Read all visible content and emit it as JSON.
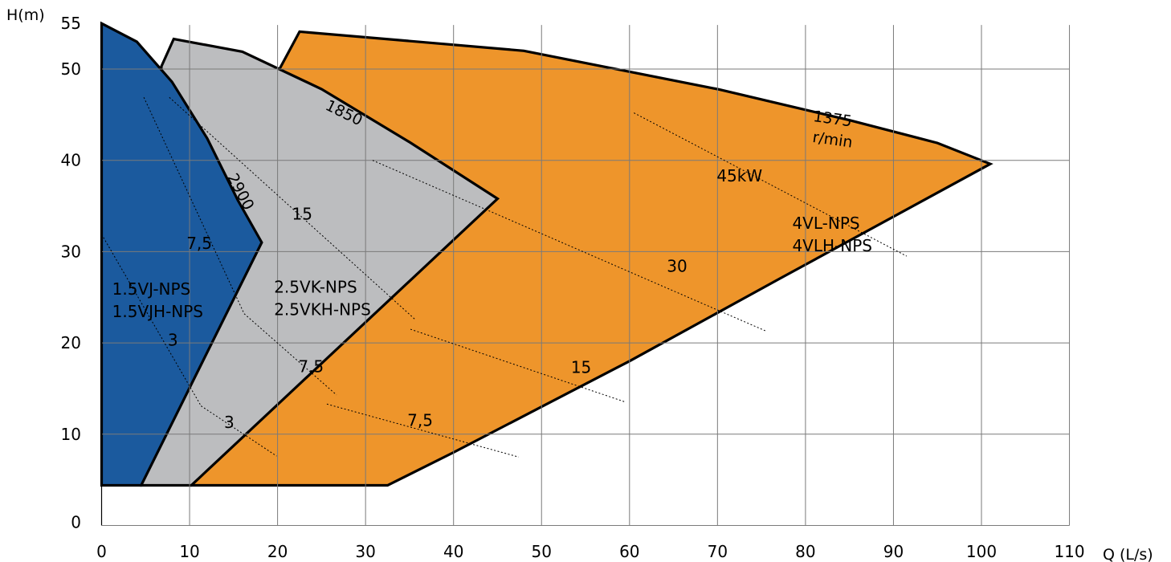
{
  "chart_data": {
    "type": "area",
    "xlabel": "Q (L/s)",
    "ylabel": "H(m)",
    "xlim": [
      0,
      110
    ],
    "ylim": [
      0,
      55
    ],
    "xticks": [
      0,
      10,
      20,
      30,
      40,
      50,
      60,
      70,
      80,
      90,
      100,
      110
    ],
    "yticks": [
      0,
      10,
      20,
      30,
      40,
      50,
      55
    ],
    "grid": true,
    "series": [
      {
        "name": "4VL-NPS / 4VLH-NPS",
        "color": "#ee952b",
        "outline": [
          [
            10.2,
            4.4
          ],
          [
            22.5,
            48.6
          ],
          [
            20.0,
            49.6
          ],
          [
            22.5,
            54.1
          ],
          [
            48,
            52.0
          ],
          [
            70,
            47.8
          ],
          [
            85,
            44.4
          ],
          [
            95,
            41.9
          ],
          [
            101,
            39.6
          ],
          [
            77,
            27.0
          ],
          [
            60,
            18.0
          ],
          [
            40,
            8.0
          ],
          [
            32.5,
            4.4
          ]
        ],
        "speed_label": [
          "1375",
          "r/min"
        ]
      },
      {
        "name": "2.5VK-NPS / 2.5VKH-NPS",
        "color": "#bcbdbf",
        "outline": [
          [
            4.5,
            4.4
          ],
          [
            6.8,
            50.3
          ],
          [
            8.2,
            53.3
          ],
          [
            16,
            51.9
          ],
          [
            25,
            47.8
          ],
          [
            35,
            42.0
          ],
          [
            45,
            35.8
          ],
          [
            10.2,
            4.4
          ]
        ],
        "speed_label": [
          "1850"
        ]
      },
      {
        "name": "1.5VJ-NPS / 1.5VJH-NPS",
        "color": "#1b5a9e",
        "outline": [
          [
            0,
            4.4
          ],
          [
            0,
            55.0
          ],
          [
            4,
            53.0
          ],
          [
            8,
            48.6
          ],
          [
            12,
            42.4
          ],
          [
            15.5,
            35.6
          ],
          [
            18.2,
            31.0
          ],
          [
            4.5,
            4.4
          ]
        ],
        "speed_label": [
          "2900"
        ]
      }
    ],
    "region_labels": [
      {
        "lines": [
          "4VL-NPS",
          "4VLH-NPS"
        ],
        "anchor": [
          78.5,
          32.5
        ]
      },
      {
        "lines": [
          "2.5VK-NPS",
          "2.5VKH-NPS"
        ],
        "anchor": [
          19.6,
          25.5
        ]
      },
      {
        "lines": [
          "1.5VJ-NPS",
          "1.5VJH-NPS"
        ],
        "anchor": [
          1.2,
          25.3
        ]
      }
    ],
    "power_lines": [
      {
        "label": "45kW",
        "points": [
          [
            60.5,
            45.2
          ],
          [
            91.5,
            29.5
          ]
        ],
        "label_at": [
          72.5,
          37.7
        ]
      },
      {
        "label": "30",
        "points": [
          [
            30.8,
            40.0
          ],
          [
            75.5,
            21.3
          ]
        ],
        "label_at": [
          65.4,
          27.8
        ]
      },
      {
        "label": "15",
        "points": [
          [
            35.1,
            21.5
          ],
          [
            59.6,
            13.5
          ]
        ],
        "label_at": [
          54.5,
          16.7
        ]
      },
      {
        "label": "7,5",
        "points": [
          [
            25.6,
            13.3
          ],
          [
            47.4,
            7.5
          ]
        ],
        "label_at": [
          36.2,
          10.9
        ]
      },
      {
        "label": "15",
        "points": [
          [
            7.7,
            46.9
          ],
          [
            35.6,
            22.6
          ]
        ],
        "label_at": [
          22.8,
          33.5
        ]
      },
      {
        "label": "7,5",
        "points": [
          [
            16.2,
            23.2
          ],
          [
            26.7,
            14.3
          ]
        ],
        "label_at": [
          23.8,
          16.8
        ]
      },
      {
        "label": "3",
        "points": [
          [
            11.3,
            13.1
          ],
          [
            19.9,
            7.6
          ]
        ],
        "label_at": [
          14.5,
          10.7
        ]
      },
      {
        "label": "7,5",
        "points": [
          [
            4.8,
            46.9
          ],
          [
            16.2,
            23.2
          ]
        ],
        "label_at": [
          11.1,
          30.3
        ]
      },
      {
        "label": "3",
        "points": [
          [
            0,
            31.9
          ],
          [
            11.3,
            13.1
          ]
        ],
        "label_at": [
          8.1,
          19.7
        ]
      }
    ]
  }
}
